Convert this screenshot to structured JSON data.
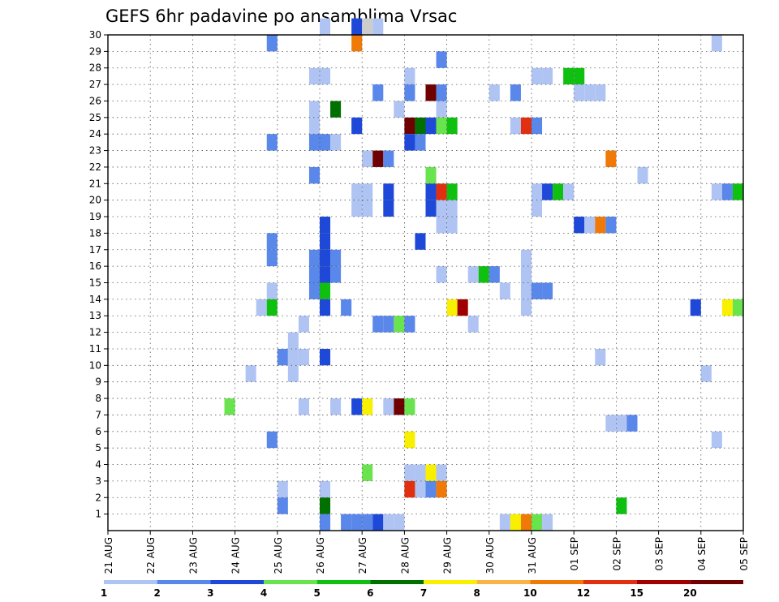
{
  "chart_data": {
    "type": "heatmap",
    "title": "GEFS 6hr padavine po ansamblima Vrsac",
    "xlabel": "",
    "ylabel": "",
    "x_step_hours": 6,
    "x_tick_labels": [
      "21 AUG",
      "22 AUG",
      "23 AUG",
      "24 AUG",
      "25 AUG",
      "26 AUG",
      "27 AUG",
      "28 AUG",
      "29 AUG",
      "30 AUG",
      "31 AUG",
      "01 SEP",
      "02 SEP",
      "03 SEP",
      "04 SEP",
      "05 SEP"
    ],
    "y_tick_labels": [
      "1",
      "2",
      "3",
      "4",
      "5",
      "6",
      "7",
      "8",
      "9",
      "10",
      "11",
      "12",
      "13",
      "14",
      "15",
      "16",
      "17",
      "18",
      "19",
      "20",
      "21",
      "22",
      "23",
      "24",
      "25",
      "26",
      "27",
      "28",
      "29",
      "30"
    ],
    "ylim": [
      0,
      30
    ],
    "grid": true,
    "legend": {
      "placement": "bottom",
      "labels": [
        "1",
        "2",
        "3",
        "4",
        "5",
        "6",
        "7",
        "8",
        "10",
        "12",
        "15",
        "20"
      ],
      "colors": [
        "#b0c4f4",
        "#5a87ea",
        "#1e48d8",
        "#6ae44e",
        "#10c010",
        "#007000",
        "#f8f000",
        "#f8b448",
        "#f07a08",
        "#e03010",
        "#a00000",
        "#6e0000"
      ]
    },
    "cells": [
      {
        "x": "2024-08-26 00:00",
        "member": 30,
        "level": 1
      },
      {
        "x": "2024-08-26 18:00",
        "member": 30,
        "level": 3
      },
      {
        "x": "2024-08-27 00:00",
        "member": 30,
        "level": 11
      },
      {
        "x": "2024-08-27 06:00",
        "member": 30,
        "level": 1
      },
      {
        "x": "2024-08-24 18:00",
        "member": 29,
        "level": 2
      },
      {
        "x": "2024-08-26 18:00",
        "member": 29,
        "level": 10
      },
      {
        "x": "2024-09-04 06:00",
        "member": 29,
        "level": 1
      },
      {
        "x": "2024-08-28 18:00",
        "member": 28,
        "level": 2
      },
      {
        "x": "2024-08-25 18:00",
        "member": 27,
        "level": 1
      },
      {
        "x": "2024-08-26 00:00",
        "member": 27,
        "level": 1
      },
      {
        "x": "2024-08-28 00:00",
        "member": 27,
        "level": 1
      },
      {
        "x": "2024-08-31 00:00",
        "member": 27,
        "level": 1
      },
      {
        "x": "2024-08-31 06:00",
        "member": 27,
        "level": 1
      },
      {
        "x": "2024-08-31 18:00",
        "member": 27,
        "level": 5
      },
      {
        "x": "2024-09-01 00:00",
        "member": 27,
        "level": 5
      },
      {
        "x": "2024-08-27 06:00",
        "member": 26,
        "level": 2
      },
      {
        "x": "2024-08-28 00:00",
        "member": 26,
        "level": 2
      },
      {
        "x": "2024-08-28 12:00",
        "member": 26,
        "level": 20
      },
      {
        "x": "2024-08-28 18:00",
        "member": 26,
        "level": 2
      },
      {
        "x": "2024-08-30 00:00",
        "member": 26,
        "level": 1
      },
      {
        "x": "2024-08-30 12:00",
        "member": 26,
        "level": 2
      },
      {
        "x": "2024-09-01 00:00",
        "member": 26,
        "level": 1
      },
      {
        "x": "2024-09-01 06:00",
        "member": 26,
        "level": 1
      },
      {
        "x": "2024-09-01 12:00",
        "member": 26,
        "level": 1
      },
      {
        "x": "2024-08-25 18:00",
        "member": 25,
        "level": 1
      },
      {
        "x": "2024-08-26 06:00",
        "member": 25,
        "level": 6
      },
      {
        "x": "2024-08-27 18:00",
        "member": 25,
        "level": 1
      },
      {
        "x": "2024-08-28 18:00",
        "member": 25,
        "level": 1
      },
      {
        "x": "2024-08-25 18:00",
        "member": 24,
        "level": 1
      },
      {
        "x": "2024-08-26 18:00",
        "member": 24,
        "level": 3
      },
      {
        "x": "2024-08-28 00:00",
        "member": 24,
        "level": 20
      },
      {
        "x": "2024-08-28 06:00",
        "member": 24,
        "level": 6
      },
      {
        "x": "2024-08-28 12:00",
        "member": 24,
        "level": 3
      },
      {
        "x": "2024-08-28 18:00",
        "member": 24,
        "level": 4
      },
      {
        "x": "2024-08-29 00:00",
        "member": 24,
        "level": 5
      },
      {
        "x": "2024-08-30 12:00",
        "member": 24,
        "level": 1
      },
      {
        "x": "2024-08-30 18:00",
        "member": 24,
        "level": 12
      },
      {
        "x": "2024-08-31 00:00",
        "member": 24,
        "level": 2
      },
      {
        "x": "2024-08-24 18:00",
        "member": 23,
        "level": 2
      },
      {
        "x": "2024-08-25 18:00",
        "member": 23,
        "level": 2
      },
      {
        "x": "2024-08-26 00:00",
        "member": 23,
        "level": 2
      },
      {
        "x": "2024-08-26 06:00",
        "member": 23,
        "level": 1
      },
      {
        "x": "2024-08-28 00:00",
        "member": 23,
        "level": 3
      },
      {
        "x": "2024-08-28 06:00",
        "member": 23,
        "level": 2
      },
      {
        "x": "2024-08-27 00:00",
        "member": 22,
        "level": 1
      },
      {
        "x": "2024-08-27 06:00",
        "member": 22,
        "level": 20
      },
      {
        "x": "2024-08-27 12:00",
        "member": 22,
        "level": 2
      },
      {
        "x": "2024-09-01 18:00",
        "member": 22,
        "level": 10
      },
      {
        "x": "2024-08-25 18:00",
        "member": 21,
        "level": 2
      },
      {
        "x": "2024-08-28 12:00",
        "member": 21,
        "level": 4
      },
      {
        "x": "2024-09-02 12:00",
        "member": 21,
        "level": 1
      },
      {
        "x": "2024-08-26 18:00",
        "member": 20,
        "level": 1
      },
      {
        "x": "2024-08-27 00:00",
        "member": 20,
        "level": 1
      },
      {
        "x": "2024-08-27 12:00",
        "member": 20,
        "level": 3
      },
      {
        "x": "2024-08-28 12:00",
        "member": 20,
        "level": 3
      },
      {
        "x": "2024-08-28 18:00",
        "member": 20,
        "level": 12
      },
      {
        "x": "2024-08-29 00:00",
        "member": 20,
        "level": 5
      },
      {
        "x": "2024-08-31 00:00",
        "member": 20,
        "level": 1
      },
      {
        "x": "2024-08-31 06:00",
        "member": 20,
        "level": 3
      },
      {
        "x": "2024-08-31 12:00",
        "member": 20,
        "level": 5
      },
      {
        "x": "2024-08-31 18:00",
        "member": 20,
        "level": 1
      },
      {
        "x": "2024-09-04 06:00",
        "member": 20,
        "level": 1
      },
      {
        "x": "2024-09-04 12:00",
        "member": 20,
        "level": 2
      },
      {
        "x": "2024-09-04 18:00",
        "member": 20,
        "level": 5
      },
      {
        "x": "2024-08-26 18:00",
        "member": 19,
        "level": 1
      },
      {
        "x": "2024-08-27 00:00",
        "member": 19,
        "level": 1
      },
      {
        "x": "2024-08-27 12:00",
        "member": 19,
        "level": 3
      },
      {
        "x": "2024-08-28 12:00",
        "member": 19,
        "level": 3
      },
      {
        "x": "2024-08-28 18:00",
        "member": 19,
        "level": 1
      },
      {
        "x": "2024-08-29 00:00",
        "member": 19,
        "level": 1
      },
      {
        "x": "2024-08-31 00:00",
        "member": 19,
        "level": 1
      },
      {
        "x": "2024-08-28 18:00",
        "member": 18,
        "level": 1
      },
      {
        "x": "2024-08-29 00:00",
        "member": 18,
        "level": 1
      },
      {
        "x": "2024-08-26 00:00",
        "member": 18,
        "level": 3
      },
      {
        "x": "2024-09-01 00:00",
        "member": 18,
        "level": 3
      },
      {
        "x": "2024-09-01 06:00",
        "member": 18,
        "level": 1
      },
      {
        "x": "2024-09-01 12:00",
        "member": 18,
        "level": 10
      },
      {
        "x": "2024-09-01 18:00",
        "member": 18,
        "level": 2
      },
      {
        "x": "2024-08-26 00:00",
        "member": 17,
        "level": 3
      },
      {
        "x": "2024-08-24 18:00",
        "member": 17,
        "level": 2
      },
      {
        "x": "2024-08-28 06:00",
        "member": 17,
        "level": 3
      },
      {
        "x": "2024-08-24 18:00",
        "member": 16,
        "level": 2
      },
      {
        "x": "2024-08-26 00:00",
        "member": 16,
        "level": 3
      },
      {
        "x": "2024-08-25 18:00",
        "member": 16,
        "level": 2
      },
      {
        "x": "2024-08-26 00:00",
        "member": 15,
        "level": 3
      },
      {
        "x": "2024-08-26 06:00",
        "member": 15,
        "level": 2
      },
      {
        "x": "2024-08-25 18:00",
        "member": 15,
        "level": 2
      },
      {
        "x": "2024-08-26 06:00",
        "member": 16,
        "level": 2
      },
      {
        "x": "2024-08-28 18:00",
        "member": 15,
        "level": 1
      },
      {
        "x": "2024-08-29 12:00",
        "member": 15,
        "level": 1
      },
      {
        "x": "2024-08-29 18:00",
        "member": 15,
        "level": 5
      },
      {
        "x": "2024-08-30 00:00",
        "member": 15,
        "level": 2
      },
      {
        "x": "2024-08-30 18:00",
        "member": 15,
        "level": 1
      },
      {
        "x": "2024-08-30 18:00",
        "member": 16,
        "level": 1
      },
      {
        "x": "2024-08-24 18:00",
        "member": 14,
        "level": 1
      },
      {
        "x": "2024-08-25 18:00",
        "member": 14,
        "level": 2
      },
      {
        "x": "2024-08-26 00:00",
        "member": 14,
        "level": 5
      },
      {
        "x": "2024-08-30 06:00",
        "member": 14,
        "level": 1
      },
      {
        "x": "2024-08-30 18:00",
        "member": 14,
        "level": 1
      },
      {
        "x": "2024-08-31 00:00",
        "member": 14,
        "level": 2
      },
      {
        "x": "2024-08-31 06:00",
        "member": 14,
        "level": 2
      },
      {
        "x": "2024-08-24 12:00",
        "member": 13,
        "level": 1
      },
      {
        "x": "2024-08-24 18:00",
        "member": 13,
        "level": 5
      },
      {
        "x": "2024-08-26 00:00",
        "member": 13,
        "level": 3
      },
      {
        "x": "2024-08-26 12:00",
        "member": 13,
        "level": 2
      },
      {
        "x": "2024-08-29 00:00",
        "member": 13,
        "level": 7
      },
      {
        "x": "2024-08-29 06:00",
        "member": 13,
        "level": 15
      },
      {
        "x": "2024-08-30 18:00",
        "member": 13,
        "level": 1
      },
      {
        "x": "2024-09-03 18:00",
        "member": 13,
        "level": 3
      },
      {
        "x": "2024-09-04 12:00",
        "member": 13,
        "level": 7
      },
      {
        "x": "2024-09-04 18:00",
        "member": 13,
        "level": 4
      },
      {
        "x": "2024-08-25 12:00",
        "member": 12,
        "level": 1
      },
      {
        "x": "2024-08-27 06:00",
        "member": 12,
        "level": 2
      },
      {
        "x": "2024-08-27 12:00",
        "member": 12,
        "level": 2
      },
      {
        "x": "2024-08-27 18:00",
        "member": 12,
        "level": 4
      },
      {
        "x": "2024-08-28 00:00",
        "member": 12,
        "level": 2
      },
      {
        "x": "2024-08-29 12:00",
        "member": 12,
        "level": 1
      },
      {
        "x": "2024-08-25 06:00",
        "member": 11,
        "level": 1
      },
      {
        "x": "2024-08-25 00:00",
        "member": 10,
        "level": 2
      },
      {
        "x": "2024-08-25 06:00",
        "member": 10,
        "level": 1
      },
      {
        "x": "2024-08-25 12:00",
        "member": 10,
        "level": 1
      },
      {
        "x": "2024-08-26 00:00",
        "member": 10,
        "level": 3
      },
      {
        "x": "2024-09-01 12:00",
        "member": 10,
        "level": 1
      },
      {
        "x": "2024-08-24 06:00",
        "member": 9,
        "level": 1
      },
      {
        "x": "2024-08-25 06:00",
        "member": 9,
        "level": 1
      },
      {
        "x": "2024-09-04 00:00",
        "member": 9,
        "level": 1
      },
      {
        "x": "2024-08-23 18:00",
        "member": 7,
        "level": 4
      },
      {
        "x": "2024-08-25 12:00",
        "member": 7,
        "level": 1
      },
      {
        "x": "2024-08-26 06:00",
        "member": 7,
        "level": 1
      },
      {
        "x": "2024-08-26 18:00",
        "member": 7,
        "level": 3
      },
      {
        "x": "2024-08-27 00:00",
        "member": 7,
        "level": 7
      },
      {
        "x": "2024-08-27 12:00",
        "member": 7,
        "level": 1
      },
      {
        "x": "2024-08-27 18:00",
        "member": 7,
        "level": 20
      },
      {
        "x": "2024-08-28 00:00",
        "member": 7,
        "level": 4
      },
      {
        "x": "2024-09-01 18:00",
        "member": 6,
        "level": 1
      },
      {
        "x": "2024-09-02 00:00",
        "member": 6,
        "level": 1
      },
      {
        "x": "2024-09-02 06:00",
        "member": 6,
        "level": 2
      },
      {
        "x": "2024-08-24 18:00",
        "member": 5,
        "level": 2
      },
      {
        "x": "2024-08-28 00:00",
        "member": 5,
        "level": 7
      },
      {
        "x": "2024-09-04 06:00",
        "member": 5,
        "level": 1
      },
      {
        "x": "2024-08-27 00:00",
        "member": 3,
        "level": 4
      },
      {
        "x": "2024-08-28 00:00",
        "member": 3,
        "level": 1
      },
      {
        "x": "2024-08-28 06:00",
        "member": 3,
        "level": 1
      },
      {
        "x": "2024-08-28 12:00",
        "member": 3,
        "level": 7
      },
      {
        "x": "2024-08-28 18:00",
        "member": 3,
        "level": 1
      },
      {
        "x": "2024-08-25 00:00",
        "member": 2,
        "level": 1
      },
      {
        "x": "2024-08-26 00:00",
        "member": 2,
        "level": 1
      },
      {
        "x": "2024-08-28 00:00",
        "member": 2,
        "level": 12
      },
      {
        "x": "2024-08-28 06:00",
        "member": 2,
        "level": 1
      },
      {
        "x": "2024-08-28 12:00",
        "member": 2,
        "level": 2
      },
      {
        "x": "2024-08-28 18:00",
        "member": 2,
        "level": 10
      },
      {
        "x": "2024-08-25 00:00",
        "member": 1,
        "level": 2
      },
      {
        "x": "2024-08-26 00:00",
        "member": 1,
        "level": 6
      },
      {
        "x": "2024-09-02 00:00",
        "member": 1,
        "level": 5
      },
      {
        "x": "2024-08-26 00:00",
        "member": 0,
        "level": 2
      },
      {
        "x": "2024-08-26 12:00",
        "member": 0,
        "level": 2
      },
      {
        "x": "2024-08-26 18:00",
        "member": 0,
        "level": 2
      },
      {
        "x": "2024-08-27 00:00",
        "member": 0,
        "level": 2
      },
      {
        "x": "2024-08-27 06:00",
        "member": 0,
        "level": 3
      },
      {
        "x": "2024-08-27 12:00",
        "member": 0,
        "level": 1
      },
      {
        "x": "2024-08-27 18:00",
        "member": 0,
        "level": 1
      },
      {
        "x": "2024-08-30 06:00",
        "member": 0,
        "level": 1
      },
      {
        "x": "2024-08-30 12:00",
        "member": 0,
        "level": 7
      },
      {
        "x": "2024-08-30 18:00",
        "member": 0,
        "level": 10
      },
      {
        "x": "2024-08-31 00:00",
        "member": 0,
        "level": 4
      },
      {
        "x": "2024-08-31 06:00",
        "member": 0,
        "level": 1
      }
    ]
  }
}
